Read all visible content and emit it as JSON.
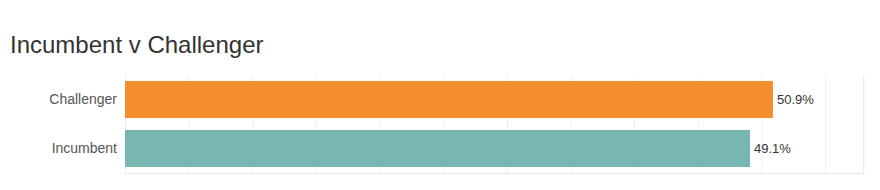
{
  "chart_data": {
    "type": "bar",
    "orientation": "horizontal",
    "title": "Incumbent v Challenger",
    "categories": [
      "Challenger",
      "Incumbent"
    ],
    "values": [
      50.9,
      49.1
    ],
    "value_labels": [
      "50.9%",
      "49.1%"
    ],
    "colors": [
      "#f28e2b",
      "#76b7b2"
    ],
    "xlim": [
      0,
      58
    ],
    "xticks": [
      0,
      5,
      10,
      15,
      20,
      25,
      30,
      35,
      40,
      45,
      50,
      55
    ],
    "grid": true,
    "data_labels": true,
    "tick_labels": "y"
  }
}
